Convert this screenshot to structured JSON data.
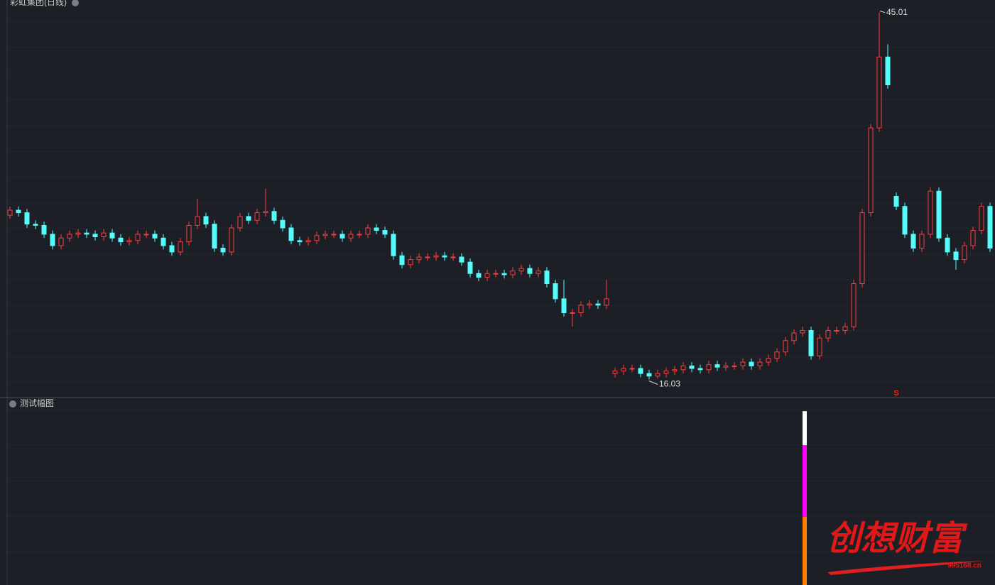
{
  "chart_data": [
    {
      "type": "candlestick",
      "title": "彩虹集团(日线)",
      "open": [
        29.0,
        29.4,
        29.2,
        28.3,
        28.2,
        27.5,
        26.6,
        27.2,
        27.5,
        27.6,
        27.5,
        27.3,
        27.6,
        27.2,
        26.9,
        27.0,
        27.5,
        27.5,
        27.2,
        26.6,
        26.1,
        26.9,
        28.2,
        28.9,
        28.3,
        26.4,
        26.1,
        28.0,
        28.9,
        28.6,
        29.2,
        29.3,
        28.6,
        28.0,
        27.0,
        26.9,
        27.0,
        27.4,
        27.5,
        27.5,
        27.2,
        27.5,
        27.5,
        28.0,
        27.8,
        27.5,
        25.8,
        25.1,
        25.5,
        25.7,
        25.7,
        25.8,
        25.7,
        25.7,
        25.3,
        24.4,
        24.1,
        24.4,
        24.4,
        24.3,
        24.6,
        24.8,
        24.4,
        24.6,
        23.6,
        22.4,
        21.3,
        21.3,
        21.9,
        22.0,
        21.9,
        16.5,
        16.7,
        16.9,
        16.9,
        16.5,
        16.3,
        16.5,
        16.7,
        16.8,
        17.1,
        16.9,
        16.8,
        17.2,
        17.0,
        17.1,
        17.1,
        17.4,
        17.1,
        17.4,
        17.7,
        18.2,
        19.1,
        19.7,
        19.9,
        17.9,
        19.3,
        19.9,
        19.9,
        20.2,
        23.6,
        29.2,
        35.9,
        41.5,
        30.5,
        29.7,
        27.5,
        26.4,
        27.5,
        30.9,
        27.2,
        26.1,
        25.5,
        26.6,
        27.8,
        29.7
      ],
      "high": [
        29.7,
        29.7,
        29.5,
        28.6,
        28.5,
        27.8,
        27.5,
        27.8,
        27.9,
        27.9,
        27.8,
        27.9,
        27.9,
        27.5,
        27.3,
        27.8,
        27.8,
        27.8,
        27.5,
        26.9,
        27.2,
        28.5,
        30.3,
        29.2,
        28.6,
        26.7,
        28.3,
        29.2,
        29.2,
        29.5,
        31.1,
        29.6,
        28.9,
        28.3,
        27.3,
        27.3,
        27.7,
        27.8,
        27.8,
        27.8,
        27.8,
        27.8,
        28.3,
        28.3,
        28.1,
        27.8,
        26.1,
        25.8,
        26.0,
        26.0,
        26.1,
        26.1,
        26.0,
        26.0,
        25.6,
        24.7,
        24.7,
        24.7,
        24.7,
        24.9,
        25.1,
        25.1,
        24.9,
        24.9,
        23.9,
        23.9,
        21.6,
        22.2,
        22.3,
        22.3,
        23.9,
        17.0,
        17.2,
        17.2,
        17.2,
        16.8,
        16.8,
        17.0,
        17.1,
        17.4,
        17.4,
        17.2,
        17.5,
        17.5,
        17.4,
        17.4,
        17.7,
        17.7,
        17.7,
        18.0,
        18.5,
        19.4,
        20.0,
        20.2,
        20.2,
        19.6,
        20.2,
        20.2,
        20.5,
        23.9,
        29.5,
        36.2,
        45.01,
        42.5,
        30.8,
        30.0,
        27.8,
        27.8,
        31.2,
        31.2,
        27.5,
        26.4,
        26.9,
        28.1,
        30.0,
        30.0
      ],
      "low": [
        28.7,
        28.9,
        28.0,
        27.9,
        27.2,
        26.3,
        26.3,
        26.9,
        27.2,
        27.2,
        27.0,
        27.0,
        26.9,
        26.6,
        26.6,
        26.7,
        27.2,
        26.9,
        26.3,
        25.8,
        25.8,
        26.6,
        27.9,
        28.0,
        26.1,
        25.8,
        25.8,
        27.7,
        28.3,
        28.3,
        28.9,
        28.3,
        27.7,
        26.7,
        26.6,
        26.6,
        26.7,
        27.1,
        27.2,
        26.9,
        26.9,
        27.2,
        27.2,
        27.5,
        27.2,
        25.5,
        24.8,
        24.8,
        25.2,
        25.4,
        25.4,
        25.4,
        25.4,
        25.0,
        24.1,
        23.8,
        23.8,
        24.1,
        24.0,
        24.0,
        24.3,
        24.1,
        24.1,
        23.3,
        22.1,
        21.0,
        20.2,
        21.0,
        21.6,
        21.6,
        21.6,
        16.2,
        16.4,
        16.6,
        16.2,
        16.03,
        16.1,
        16.2,
        16.4,
        16.5,
        16.6,
        16.5,
        16.5,
        16.7,
        16.7,
        16.8,
        16.8,
        16.8,
        16.8,
        17.1,
        17.4,
        17.9,
        18.8,
        19.4,
        17.6,
        17.6,
        19.0,
        19.6,
        19.6,
        19.9,
        23.3,
        28.9,
        35.6,
        39.0,
        29.4,
        27.2,
        26.1,
        26.1,
        27.2,
        26.9,
        25.8,
        24.7,
        25.2,
        26.3,
        27.5,
        26.1
      ],
      "close": [
        29.4,
        29.2,
        28.3,
        28.2,
        27.5,
        26.6,
        27.2,
        27.5,
        27.6,
        27.5,
        27.3,
        27.6,
        27.2,
        26.9,
        27.0,
        27.5,
        27.5,
        27.2,
        26.6,
        26.1,
        26.9,
        28.2,
        28.9,
        28.3,
        26.4,
        26.1,
        28.0,
        28.9,
        28.6,
        29.2,
        29.3,
        28.6,
        28.0,
        27.0,
        26.9,
        27.0,
        27.4,
        27.5,
        27.5,
        27.2,
        27.5,
        27.5,
        28.0,
        27.8,
        27.5,
        25.8,
        25.1,
        25.5,
        25.7,
        25.7,
        25.8,
        25.7,
        25.7,
        25.3,
        24.4,
        24.1,
        24.4,
        24.4,
        24.3,
        24.6,
        24.8,
        24.4,
        24.6,
        23.6,
        22.4,
        21.3,
        21.3,
        21.9,
        22.0,
        21.9,
        22.4,
        16.7,
        16.9,
        16.9,
        16.5,
        16.3,
        16.5,
        16.7,
        16.8,
        17.1,
        16.9,
        16.8,
        17.2,
        17.0,
        17.1,
        17.1,
        17.4,
        17.1,
        17.4,
        17.7,
        18.2,
        19.1,
        19.7,
        19.9,
        17.9,
        19.3,
        19.9,
        19.9,
        20.2,
        23.6,
        29.2,
        35.9,
        41.5,
        39.3,
        29.7,
        27.5,
        26.4,
        27.5,
        30.9,
        27.2,
        26.1,
        25.5,
        26.6,
        27.8,
        29.7,
        26.4
      ],
      "ylim": [
        14.6,
        46.0
      ],
      "up_color": "#ff3c3c",
      "down_color": "#54fcfc",
      "grid": true,
      "annotation": "S",
      "annotation_color": "#ff2020"
    },
    {
      "type": "stacked-bar",
      "title": "测试幅图",
      "series": [
        {
          "color": "#ff8000",
          "values": [
            2
          ]
        },
        {
          "color": "#ff00ff",
          "values": [
            2.1
          ]
        },
        {
          "color": "#ffffff",
          "values": [
            1
          ]
        }
      ],
      "ylim": [
        0,
        5.5
      ],
      "grid": true
    }
  ],
  "watermark": {
    "text": "创想财富",
    "url": "995168.cn"
  }
}
